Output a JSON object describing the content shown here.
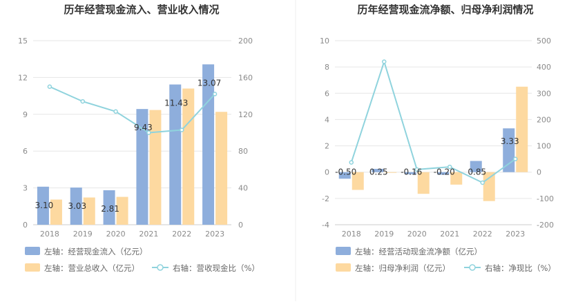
{
  "chart_data": [
    {
      "type": "bar",
      "title": "历年经营现金流入、营业收入情况",
      "categories": [
        "2018",
        "2019",
        "2020",
        "2021",
        "2022",
        "2023"
      ],
      "left_axis": {
        "ylim": [
          0,
          15
        ],
        "ticks": [
          "0",
          "3",
          "6",
          "9",
          "12",
          "15"
        ]
      },
      "right_axis": {
        "ylim": [
          0,
          200
        ],
        "ticks": [
          "0",
          "40",
          "80",
          "120",
          "160",
          "200"
        ]
      },
      "series": [
        {
          "name": "左轴：经营现金流入（亿元）",
          "kind": "bar",
          "axis": "left",
          "color": "#8eaedc",
          "values": [
            3.1,
            3.03,
            2.81,
            9.43,
            11.43,
            13.07
          ],
          "labels": [
            "3.10",
            "3.03",
            "2.81",
            "9.43",
            "11.43",
            "13.07"
          ]
        },
        {
          "name": "左轴：营业总收入（亿元）",
          "kind": "bar",
          "axis": "left",
          "color": "#fdd9a0",
          "values": [
            2.05,
            2.22,
            2.27,
            9.35,
            11.1,
            9.2
          ]
        },
        {
          "name": "右轴：营收现金比（%）",
          "kind": "line",
          "axis": "right",
          "color": "#8fd3dd",
          "values": [
            150,
            134,
            123,
            100,
            103,
            142
          ]
        }
      ],
      "grid": true
    },
    {
      "type": "bar",
      "title": "历年经营现金流净额、归母净利润情况",
      "categories": [
        "2018",
        "2019",
        "2020",
        "2021",
        "2022",
        "2023"
      ],
      "left_axis": {
        "ylim": [
          -4,
          10
        ],
        "ticks": [
          "-4",
          "-2",
          "0",
          "2",
          "4",
          "6",
          "8",
          "10"
        ]
      },
      "right_axis": {
        "ylim": [
          -200,
          500
        ],
        "ticks": [
          "-200",
          "-100",
          "0",
          "100",
          "200",
          "300",
          "400",
          "500"
        ]
      },
      "series": [
        {
          "name": "左轴：经营活动现金流净额（亿元）",
          "kind": "bar",
          "axis": "left",
          "color": "#8eaedc",
          "values": [
            -0.5,
            0.25,
            -0.16,
            -0.2,
            0.85,
            3.33
          ],
          "labels": [
            "-0.50",
            "0.25",
            "-0.16",
            "-0.20",
            "0.85",
            "3.33"
          ]
        },
        {
          "name": "左轴：归母净利润（亿元）",
          "kind": "bar",
          "axis": "left",
          "color": "#fdd9a0",
          "values": [
            -1.35,
            -0.05,
            -1.65,
            -0.95,
            -2.2,
            6.5
          ]
        },
        {
          "name": "右轴：净现比（%）",
          "kind": "line",
          "axis": "right",
          "color": "#8fd3dd",
          "values": [
            37,
            420,
            10,
            20,
            -40,
            50
          ]
        }
      ],
      "grid": true
    }
  ]
}
